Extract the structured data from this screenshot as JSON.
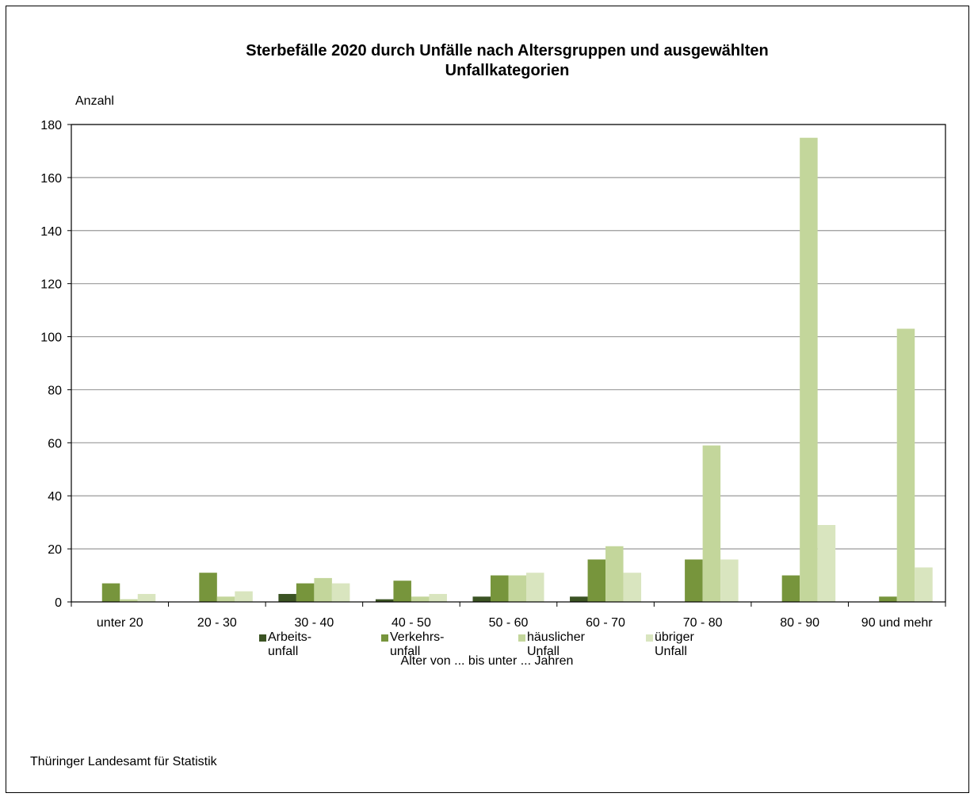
{
  "chart_data": {
    "type": "bar",
    "title_line1": "Sterbefälle 2020 durch Unfälle nach Altersgruppen und ausgewählten",
    "title_line2": "Unfallkategorien",
    "ylabel": "Anzahl",
    "xlabel": "Alter von ... bis unter ... Jahren",
    "ylim": [
      0,
      180
    ],
    "yticks": [
      0,
      20,
      40,
      60,
      80,
      100,
      120,
      140,
      160,
      180
    ],
    "grid": true,
    "legend_position": "bottom",
    "categories": [
      "unter 20",
      "20 - 30",
      "30 - 40",
      "40 - 50",
      "50 - 60",
      "60 - 70",
      "70 - 80",
      "80 - 90",
      "90 und mehr"
    ],
    "series": [
      {
        "name": "Arbeits-\nunfall",
        "color": "#3b5323",
        "values": [
          0,
          0,
          3,
          1,
          2,
          2,
          0,
          0,
          0
        ]
      },
      {
        "name": "Verkehrs-\nunfall",
        "color": "#77953c",
        "values": [
          7,
          11,
          7,
          8,
          10,
          16,
          16,
          10,
          2
        ]
      },
      {
        "name": "häuslicher\nUnfall",
        "color": "#c3d69b",
        "values": [
          1,
          2,
          9,
          2,
          10,
          21,
          59,
          175,
          103
        ]
      },
      {
        "name": "übriger\nUnfall",
        "color": "#d9e5bf",
        "values": [
          3,
          4,
          7,
          3,
          11,
          11,
          16,
          29,
          13
        ]
      }
    ]
  },
  "source": "Thüringer Landesamt für Statistik"
}
